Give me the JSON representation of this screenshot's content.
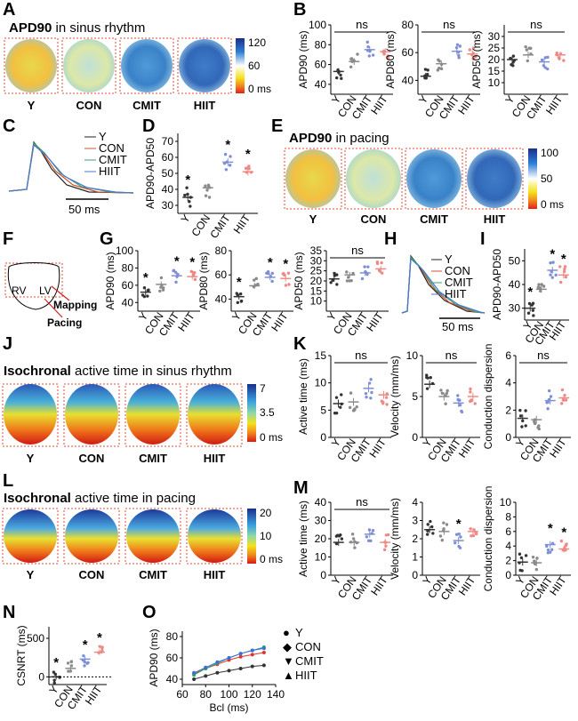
{
  "panel_letters": [
    "A",
    "B",
    "C",
    "D",
    "E",
    "F",
    "G",
    "H",
    "I",
    "J",
    "K",
    "L",
    "M",
    "N",
    "O"
  ],
  "groups": [
    "Y",
    "CON",
    "CMIT",
    "HIIT"
  ],
  "group_colors": {
    "Y": "#333333",
    "CON": "#8a8a8a",
    "CMIT": "#7f8fd6",
    "HIIT": "#ee8a86"
  },
  "titles": {
    "A": {
      "bold": "APD90",
      "rest": " in sinus rhythm"
    },
    "E": {
      "bold": "APD90",
      "rest": " in pacing"
    },
    "J": {
      "bold": "Isochronal",
      "rest": " active time in sinus rhythm"
    },
    "L": {
      "bold": "Isochronal",
      "rest": " active time in pacing"
    }
  },
  "colorbars": {
    "A": [
      "120",
      "60",
      "0 ms"
    ],
    "E": [
      "100",
      "50",
      "0 ms"
    ],
    "J": [
      "7",
      "3.5",
      "0 ms"
    ],
    "L": [
      "20",
      "10",
      "0 ms"
    ]
  },
  "anatomy": {
    "rv": "RV",
    "lv": "LV",
    "mapping": "Mapping",
    "pacing": "Pacing"
  },
  "trace_legend": [
    "Y",
    "CON",
    "CMIT",
    "HIIT"
  ],
  "scalebar": "50 ms",
  "ns_label": "ns",
  "star_label": "*",
  "chart_data": [
    {
      "panel": "B",
      "type": "scatter",
      "ylabel": "APD90 (ms)",
      "ylim": [
        30,
        100
      ],
      "yticks": [
        40,
        60,
        80,
        100
      ],
      "categories": [
        "Y",
        "CON",
        "CMIT",
        "HIIT"
      ],
      "means": [
        53,
        63,
        75,
        73
      ],
      "sig": "ns",
      "stars": []
    },
    {
      "panel": "B",
      "type": "scatter",
      "ylabel": "APD80 (ms)",
      "ylim": [
        30,
        80
      ],
      "yticks": [
        40,
        60,
        80
      ],
      "categories": [
        "Y",
        "CON",
        "CMIT",
        "HIIT"
      ],
      "means": [
        43,
        52,
        61,
        59
      ],
      "sig": "ns",
      "stars": []
    },
    {
      "panel": "B",
      "type": "scatter",
      "ylabel": "APD50 (ms)",
      "ylim": [
        5,
        35
      ],
      "yticks": [
        10,
        15,
        20,
        25,
        30
      ],
      "categories": [
        "Y",
        "CON",
        "CMIT",
        "HIIT"
      ],
      "means": [
        20,
        22,
        19,
        22
      ],
      "sig": "ns",
      "stars": []
    },
    {
      "panel": "D",
      "type": "scatter",
      "ylabel": "APD90-APD50",
      "ylim": [
        25,
        75
      ],
      "yticks": [
        30,
        40,
        50,
        60,
        70
      ],
      "categories": [
        "Y",
        "CON",
        "CMIT",
        "HIIT"
      ],
      "means": [
        35,
        41,
        57,
        51
      ],
      "sig": "",
      "stars": [
        true,
        false,
        true,
        true
      ]
    },
    {
      "panel": "G",
      "type": "scatter",
      "ylabel": "APD90 (ms)",
      "ylim": [
        30,
        100
      ],
      "yticks": [
        40,
        60,
        80,
        100
      ],
      "categories": [
        "Y",
        "CON",
        "CMIT",
        "HIIT"
      ],
      "means": [
        52,
        61,
        71,
        70
      ],
      "sig": "",
      "stars": [
        true,
        false,
        true,
        true
      ]
    },
    {
      "panel": "G",
      "type": "scatter",
      "ylabel": "APD80 (ms)",
      "ylim": [
        30,
        80
      ],
      "yticks": [
        40,
        60,
        80
      ],
      "categories": [
        "Y",
        "CON",
        "CMIT",
        "HIIT"
      ],
      "means": [
        42,
        51,
        58,
        57
      ],
      "sig": "",
      "stars": [
        true,
        false,
        true,
        true
      ]
    },
    {
      "panel": "G",
      "type": "scatter",
      "ylabel": "APD50 (ms)",
      "ylim": [
        5,
        35
      ],
      "yticks": [
        10,
        15,
        20,
        25,
        30,
        35
      ],
      "categories": [
        "Y",
        "CON",
        "CMIT",
        "HIIT"
      ],
      "means": [
        21,
        23,
        24,
        26
      ],
      "sig": "ns",
      "stars": []
    },
    {
      "panel": "I",
      "type": "scatter",
      "ylabel": "APD90-APD50",
      "ylim": [
        25,
        55
      ],
      "yticks": [
        30,
        40,
        50
      ],
      "categories": [
        "Y",
        "CON",
        "CMIT",
        "HIIT"
      ],
      "means": [
        30,
        38,
        46,
        44
      ],
      "sig": "",
      "stars": [
        true,
        false,
        true,
        true
      ]
    },
    {
      "panel": "K",
      "type": "scatter",
      "ylabel": "Active time (ms)",
      "ylim": [
        0,
        15
      ],
      "yticks": [
        0,
        5,
        10,
        15
      ],
      "categories": [
        "Y",
        "CON",
        "CMIT",
        "HIIT"
      ],
      "means": [
        6.2,
        6.5,
        9,
        7.8
      ],
      "sig": "ns",
      "stars": []
    },
    {
      "panel": "K",
      "type": "scatter",
      "ylabel": "Velocity (mm/ms)",
      "ylim": [
        0,
        10
      ],
      "yticks": [
        0,
        5,
        10
      ],
      "categories": [
        "Y",
        "CON",
        "CMIT",
        "HIIT"
      ],
      "means": [
        6.5,
        5,
        4.2,
        5
      ],
      "sig": "ns",
      "stars": []
    },
    {
      "panel": "K",
      "type": "scatter",
      "ylabel": "Conduction dispersion",
      "ylim": [
        0,
        6
      ],
      "yticks": [
        0,
        2,
        4,
        6
      ],
      "categories": [
        "Y",
        "CON",
        "CMIT",
        "HIIT"
      ],
      "means": [
        1.4,
        1.3,
        2.7,
        2.9
      ],
      "sig": "ns",
      "stars": []
    },
    {
      "panel": "M",
      "type": "scatter",
      "ylabel": "Active time (ms)",
      "ylim": [
        0,
        40
      ],
      "yticks": [
        0,
        10,
        20,
        30,
        40
      ],
      "categories": [
        "Y",
        "CON",
        "CMIT",
        "HIIT"
      ],
      "means": [
        18,
        18,
        22.5,
        18
      ],
      "sig": "ns",
      "stars": []
    },
    {
      "panel": "M",
      "type": "scatter",
      "ylabel": "Velocity (mm/ms)",
      "ylim": [
        0,
        4
      ],
      "yticks": [
        0,
        1,
        2,
        3,
        4
      ],
      "categories": [
        "Y",
        "CON",
        "CMIT",
        "HIIT"
      ],
      "means": [
        2.5,
        2.4,
        1.9,
        2.4
      ],
      "sig": "",
      "stars": [
        false,
        false,
        true,
        false
      ]
    },
    {
      "panel": "M",
      "type": "scatter",
      "ylabel": "Conduction dispersion",
      "ylim": [
        0,
        10
      ],
      "yticks": [
        0,
        2,
        4,
        6,
        8,
        10
      ],
      "categories": [
        "Y",
        "CON",
        "CMIT",
        "HIIT"
      ],
      "means": [
        1.8,
        1.7,
        4.2,
        3.6
      ],
      "sig": "",
      "stars": [
        false,
        false,
        true,
        true
      ]
    },
    {
      "panel": "N",
      "type": "scatter",
      "ylabel": "CSNRT (ms)",
      "ylim": [
        -100,
        650
      ],
      "yticks": [
        0,
        500
      ],
      "categories": [
        "Y",
        "CON",
        "CMIT",
        "HIIT"
      ],
      "means": [
        0,
        110,
        230,
        320
      ],
      "sig": "",
      "stars": [
        true,
        false,
        true,
        true
      ]
    },
    {
      "panel": "O",
      "type": "line",
      "xlabel": "Bcl (ms)",
      "ylabel": "APD90 (ms)",
      "xlim": [
        60,
        140
      ],
      "ylim": [
        35,
        85
      ],
      "xticks": [
        60,
        80,
        100,
        120,
        140
      ],
      "yticks": [
        40,
        60,
        80
      ],
      "x": [
        70,
        80,
        90,
        100,
        110,
        120,
        130
      ],
      "series": [
        {
          "name": "Y",
          "marker": "●",
          "color": "#333333",
          "values": [
            40,
            43,
            46,
            48,
            50,
            52,
            53
          ]
        },
        {
          "name": "CON",
          "marker": "◆",
          "color": "#e0332e",
          "values": [
            45,
            50,
            54,
            58,
            61,
            63,
            65
          ]
        },
        {
          "name": "CMIT",
          "marker": "▼",
          "color": "#2aa56a",
          "values": [
            44,
            50,
            55,
            60,
            64,
            67,
            70
          ]
        },
        {
          "name": "HIIT",
          "marker": "▲",
          "color": "#3a6fd8",
          "values": [
            46,
            51,
            56,
            60,
            64,
            67,
            69
          ]
        }
      ]
    }
  ]
}
